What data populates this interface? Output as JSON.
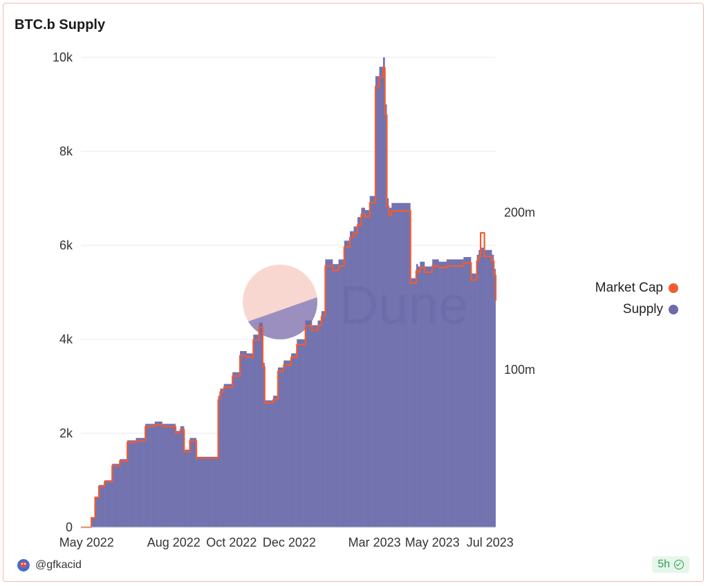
{
  "header": {
    "title": "BTC.b Supply"
  },
  "footer": {
    "username": "@gfkacid",
    "freshness": "5h"
  },
  "watermark": {
    "text": "Dune"
  },
  "colors": {
    "supply": "#6b6bad",
    "market_cap": "#f25c30",
    "grid": "#e8e8e8"
  },
  "chart_data": {
    "type": "area",
    "title": "BTC.b Supply",
    "x_ticks": [
      "May 2022",
      "Aug 2022",
      "Oct 2022",
      "Dec 2022",
      "Mar 2023",
      "May 2023",
      "Jul 2023"
    ],
    "y_left_ticks": [
      "0",
      "2k",
      "4k",
      "6k",
      "8k",
      "10k"
    ],
    "y_left_range": [
      0,
      10000
    ],
    "y_right_ticks": [
      "100m",
      "200m"
    ],
    "legend": [
      "Market Cap",
      "Supply"
    ],
    "legend_position": "right",
    "grid": true,
    "series": [
      {
        "name": "Supply",
        "axis": "left",
        "x": [
          "2022-04-25",
          "2022-05-05",
          "2022-05-06",
          "2022-05-10",
          "2022-05-14",
          "2022-05-20",
          "2022-05-28",
          "2022-06-05",
          "2022-06-13",
          "2022-06-22",
          "2022-07-02",
          "2022-07-12",
          "2022-07-20",
          "2022-07-28",
          "2022-08-03",
          "2022-08-08",
          "2022-08-12",
          "2022-08-18",
          "2022-08-25",
          "2022-09-05",
          "2022-09-13",
          "2022-09-17",
          "2022-09-19",
          "2022-09-23",
          "2022-10-02",
          "2022-10-10",
          "2022-10-17",
          "2022-10-24",
          "2022-10-30",
          "2022-11-03",
          "2022-11-05",
          "2022-11-14",
          "2022-11-19",
          "2022-11-25",
          "2022-12-03",
          "2022-12-09",
          "2022-12-18",
          "2022-12-25",
          "2022-12-31",
          "2023-01-04",
          "2023-01-08",
          "2023-01-16",
          "2023-01-22",
          "2023-01-28",
          "2023-02-03",
          "2023-02-07",
          "2023-02-11",
          "2023-02-15",
          "2023-02-19",
          "2023-02-24",
          "2023-03-02",
          "2023-03-06",
          "2023-03-10",
          "2023-03-12",
          "2023-03-14",
          "2023-03-16",
          "2023-03-19",
          "2023-03-24",
          "2023-03-28",
          "2023-04-04",
          "2023-04-08",
          "2023-04-14",
          "2023-04-16",
          "2023-04-18",
          "2023-04-23",
          "2023-05-01",
          "2023-05-08",
          "2023-05-16",
          "2023-05-21",
          "2023-05-25",
          "2023-06-03",
          "2023-06-11",
          "2023-06-17",
          "2023-06-19",
          "2023-06-21",
          "2023-06-25",
          "2023-06-29",
          "2023-07-03",
          "2023-07-05",
          "2023-07-07"
        ],
        "values": [
          0,
          0,
          200,
          650,
          900,
          1000,
          1350,
          1450,
          1850,
          1900,
          2200,
          2250,
          2200,
          2200,
          2050,
          2150,
          1650,
          1900,
          1500,
          1500,
          1500,
          2800,
          2950,
          3050,
          3300,
          3750,
          3700,
          4100,
          4350,
          3500,
          2700,
          2800,
          3400,
          3550,
          3700,
          4000,
          4400,
          4300,
          4400,
          4600,
          5700,
          5600,
          5700,
          6100,
          6300,
          6400,
          6600,
          6800,
          6750,
          7050,
          9600,
          9800,
          10000,
          9000,
          7000,
          6800,
          6900,
          6900,
          6900,
          6900,
          5300,
          5600,
          5550,
          5650,
          5550,
          5700,
          5650,
          5700,
          5700,
          5700,
          5750,
          5400,
          5800,
          5900,
          5950,
          5900,
          5900,
          5800,
          5500,
          4950
        ]
      },
      {
        "name": "Market Cap",
        "axis": "right",
        "x": [
          "2022-04-25",
          "2022-05-05",
          "2022-05-06",
          "2022-05-10",
          "2022-05-14",
          "2022-05-20",
          "2022-05-28",
          "2022-06-05",
          "2022-06-13",
          "2022-06-22",
          "2022-07-02",
          "2022-07-12",
          "2022-07-20",
          "2022-07-28",
          "2022-08-03",
          "2022-08-08",
          "2022-08-12",
          "2022-08-18",
          "2022-08-25",
          "2022-09-05",
          "2022-09-13",
          "2022-09-17",
          "2022-09-19",
          "2022-09-23",
          "2022-10-02",
          "2022-10-10",
          "2022-10-17",
          "2022-10-24",
          "2022-10-30",
          "2022-11-03",
          "2022-11-05",
          "2022-11-14",
          "2022-11-19",
          "2022-11-25",
          "2022-12-03",
          "2022-12-09",
          "2022-12-18",
          "2022-12-25",
          "2022-12-31",
          "2023-01-04",
          "2023-01-08",
          "2023-01-16",
          "2023-01-22",
          "2023-01-28",
          "2023-02-03",
          "2023-02-07",
          "2023-02-11",
          "2023-02-15",
          "2023-02-19",
          "2023-02-24",
          "2023-03-02",
          "2023-03-06",
          "2023-03-10",
          "2023-03-12",
          "2023-03-14",
          "2023-03-16",
          "2023-03-19",
          "2023-03-24",
          "2023-03-28",
          "2023-04-04",
          "2023-04-08",
          "2023-04-14",
          "2023-04-16",
          "2023-04-18",
          "2023-04-23",
          "2023-05-01",
          "2023-05-08",
          "2023-05-16",
          "2023-05-21",
          "2023-05-25",
          "2023-06-03",
          "2023-06-11",
          "2023-06-17",
          "2023-06-19",
          "2023-06-21",
          "2023-06-25",
          "2023-06-29",
          "2023-07-03",
          "2023-07-05",
          "2023-07-07"
        ],
        "values": [
          0,
          0,
          6,
          19,
          26,
          29,
          39,
          42,
          54,
          55,
          64,
          65,
          64,
          64,
          60,
          62,
          48,
          55,
          44,
          44,
          44,
          81,
          86,
          89,
          96,
          109,
          108,
          119,
          127,
          102,
          79,
          81,
          99,
          103,
          108,
          116,
          128,
          125,
          128,
          134,
          166,
          163,
          166,
          178,
          184,
          187,
          192,
          199,
          197,
          206,
          280,
          286,
          292,
          262,
          204,
          198,
          201,
          201,
          201,
          201,
          155,
          163,
          162,
          165,
          162,
          166,
          165,
          166,
          166,
          166,
          168,
          157,
          169,
          172,
          187,
          172,
          172,
          169,
          160,
          144
        ]
      }
    ]
  }
}
